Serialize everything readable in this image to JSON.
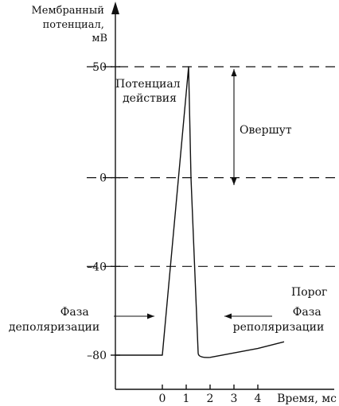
{
  "chart_data": {
    "type": "line",
    "ylabel_lines": [
      "Мембранный",
      "потенциал,",
      "мВ"
    ],
    "xlabel": "Время, мс",
    "x_ticks": [
      0,
      1,
      2,
      3,
      4
    ],
    "y_ticks": [
      50,
      0,
      -40,
      -80
    ],
    "y_tick_labels": [
      "50",
      "0",
      "–40",
      "–80"
    ],
    "xlim": [
      -2,
      5.5
    ],
    "ylim": [
      -94,
      77
    ],
    "series": [
      {
        "x": [
          -2.0,
          0.0,
          1.1,
          1.2,
          1.5,
          2.0,
          3.0,
          4.0,
          5.1
        ],
        "y": [
          -80,
          -80,
          50,
          0,
          -79,
          -81,
          -79,
          -77,
          -74
        ]
      }
    ],
    "reference_lines": [
      {
        "y": 50
      },
      {
        "y": 0
      },
      {
        "y": -40
      }
    ],
    "annotations": {
      "action_potential": [
        "Потенциал",
        "действия"
      ],
      "overshoot": "Овершут",
      "threshold": "Порог",
      "depolarization": [
        "Фаза",
        "деполяризации"
      ],
      "repolarization": [
        "Фаза",
        "реполяризации"
      ]
    }
  }
}
